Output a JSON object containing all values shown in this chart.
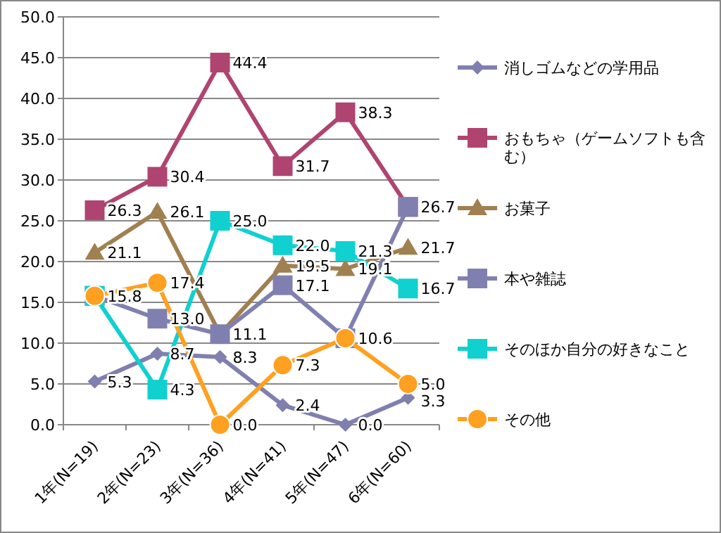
{
  "chart_data": {
    "type": "line",
    "categories": [
      "1年(N=19)",
      "2年(N=23)",
      "3年(N=36)",
      "4年(N=41)",
      "5年(N=47)",
      "6年(N=60)"
    ],
    "ylim": [
      0,
      50
    ],
    "yticks": [
      {
        "value": 0,
        "label": "0.0"
      },
      {
        "value": 5,
        "label": "5.0"
      },
      {
        "value": 10,
        "label": "10.0"
      },
      {
        "value": 15,
        "label": "15.0"
      },
      {
        "value": 20,
        "label": "20.0"
      },
      {
        "value": 25,
        "label": "25.0"
      },
      {
        "value": 30,
        "label": "30.0"
      },
      {
        "value": 35,
        "label": "35.0"
      },
      {
        "value": 40,
        "label": "40.0"
      },
      {
        "value": 45,
        "label": "45.0"
      },
      {
        "value": 50,
        "label": "50.0"
      }
    ],
    "grid": "y",
    "legend": "right",
    "series": [
      {
        "name": "消しゴムなどの学用品",
        "color": "#7f7fb0",
        "marker": "diamond",
        "values": [
          5.3,
          8.7,
          8.3,
          2.4,
          0.0,
          3.3
        ],
        "value_labels": [
          "5.3",
          "8.7",
          "8.3",
          "2.4",
          "0.0",
          "3.3"
        ]
      },
      {
        "name": "おもちゃ（ゲームソフトも含む）",
        "color": "#b04470",
        "marker": "square",
        "values": [
          26.3,
          30.4,
          44.4,
          31.7,
          38.3,
          26.7
        ],
        "value_labels": [
          "26.3",
          "30.4",
          "44.4",
          "31.7",
          "38.3",
          null
        ]
      },
      {
        "name": "お菓子",
        "color": "#a08050",
        "marker": "triangle",
        "values": [
          21.1,
          26.1,
          11.1,
          19.5,
          19.1,
          21.7
        ],
        "value_labels": [
          "21.1",
          "26.1",
          null,
          "19.5",
          "19.1",
          "21.7"
        ]
      },
      {
        "name": "本や雑誌",
        "color": "#8080b0",
        "marker": "square",
        "values": [
          15.8,
          13.0,
          11.1,
          17.1,
          10.6,
          26.7
        ],
        "value_labels": [
          "15.8",
          "13.0",
          "11.1",
          "17.1",
          "10.6",
          "26.7"
        ]
      },
      {
        "name": "そのほか自分の好きなこと",
        "color": "#10d0d0",
        "marker": "square",
        "values": [
          15.8,
          4.3,
          25.0,
          22.0,
          21.3,
          16.7
        ],
        "value_labels": [
          null,
          "4.3",
          "25.0",
          "22.0",
          "21.3",
          "16.7"
        ]
      },
      {
        "name": "その他",
        "color": "#ffa020",
        "marker": "circle",
        "values": [
          15.8,
          17.4,
          0.0,
          7.3,
          10.6,
          5.0
        ],
        "value_labels": [
          null,
          "17.4",
          "0.0",
          "7.3",
          null,
          "5.0"
        ]
      }
    ]
  }
}
